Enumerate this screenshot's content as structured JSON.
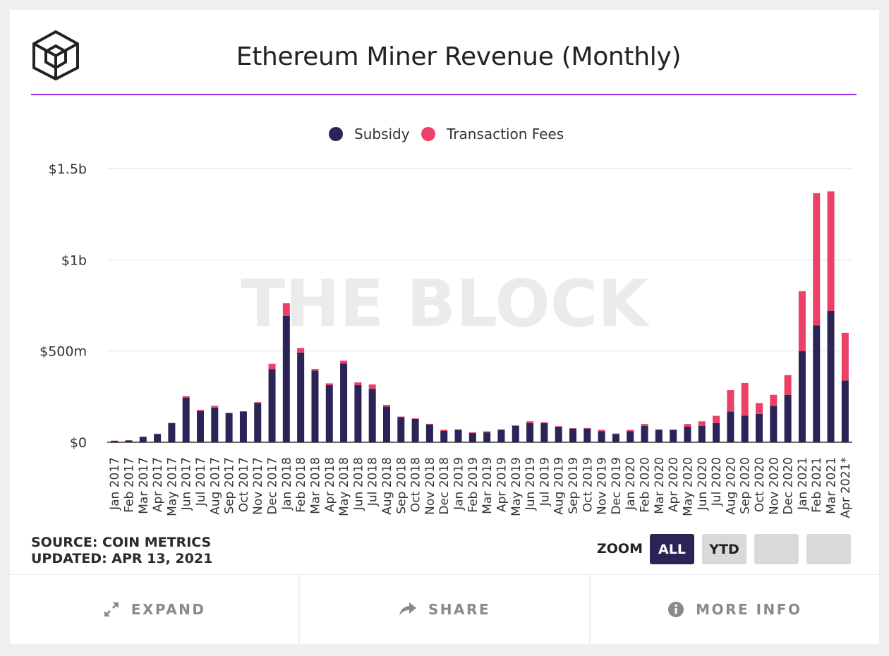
{
  "header": {
    "title": "Ethereum Miner Revenue (Monthly)"
  },
  "watermark": "THE BLOCK",
  "source": {
    "line1": "SOURCE: COIN METRICS",
    "line2": "UPDATED: APR 13, 2021"
  },
  "zoom": {
    "label": "ZOOM",
    "buttons": [
      "ALL",
      "YTD",
      "",
      ""
    ]
  },
  "footer": {
    "expand": "EXPAND",
    "share": "SHARE",
    "more_info": "MORE INFO"
  },
  "colors": {
    "subsidy": "#2a2457",
    "fees": "#ec4068",
    "accent": "#8a2be2"
  },
  "chart_data": {
    "type": "bar",
    "stacked": true,
    "title": "Ethereum Miner Revenue (Monthly)",
    "legend_position": "top-center",
    "grid": true,
    "ylim": [
      0,
      1500000000
    ],
    "yticks": [
      {
        "value": 0,
        "label": "$0"
      },
      {
        "value": 500000000,
        "label": "$500m"
      },
      {
        "value": 1000000000,
        "label": "$1b"
      },
      {
        "value": 1500000000,
        "label": "$1.5b"
      }
    ],
    "categories": [
      "Jan 2017",
      "Feb 2017",
      "Mar 2017",
      "Apr 2017",
      "May 2017",
      "Jun 2017",
      "Jul 2017",
      "Aug 2017",
      "Sep 2017",
      "Oct 2017",
      "Nov 2017",
      "Dec 2017",
      "Jan 2018",
      "Feb 2018",
      "Mar 2018",
      "Apr 2018",
      "May 2018",
      "Jun 2018",
      "Jul 2018",
      "Aug 2018",
      "Sep 2018",
      "Oct 2018",
      "Nov 2018",
      "Dec 2018",
      "Jan 2019",
      "Feb 2019",
      "Mar 2019",
      "Apr 2019",
      "May 2019",
      "Jun 2019",
      "Jul 2019",
      "Aug 2019",
      "Sep 2019",
      "Oct 2019",
      "Nov 2019",
      "Dec 2019",
      "Jan 2020",
      "Feb 2020",
      "Mar 2020",
      "Apr 2020",
      "May 2020",
      "Jun 2020",
      "Jul 2020",
      "Aug 2020",
      "Sep 2020",
      "Oct 2020",
      "Nov 2020",
      "Dec 2020",
      "Jan 2021",
      "Feb 2021",
      "Mar 2021",
      "Apr 2021*"
    ],
    "series": [
      {
        "name": "Subsidy",
        "values": [
          8000000,
          10000000,
          30000000,
          45000000,
          105000000,
          245000000,
          170000000,
          190000000,
          160000000,
          168000000,
          215000000,
          400000000,
          692000000,
          492000000,
          392000000,
          313000000,
          432000000,
          313000000,
          292000000,
          195000000,
          138000000,
          128000000,
          98000000,
          62000000,
          68000000,
          50000000,
          55000000,
          68000000,
          90000000,
          105000000,
          105000000,
          85000000,
          75000000,
          75000000,
          60000000,
          45000000,
          60000000,
          90000000,
          68000000,
          68000000,
          85000000,
          90000000,
          105000000,
          168000000,
          145000000,
          155000000,
          200000000,
          260000000,
          500000000,
          640000000,
          720000000,
          338000000
        ]
      },
      {
        "name": "Transaction Fees",
        "values": [
          1000000,
          1000000,
          1000000,
          2000000,
          2000000,
          8000000,
          8000000,
          10000000,
          2000000,
          2000000,
          5000000,
          30000000,
          70000000,
          25000000,
          10000000,
          10000000,
          15000000,
          15000000,
          25000000,
          10000000,
          3000000,
          3000000,
          3000000,
          7000000,
          3000000,
          5000000,
          5000000,
          3000000,
          3000000,
          10000000,
          5000000,
          3000000,
          2000000,
          3000000,
          8000000,
          3000000,
          8000000,
          10000000,
          3000000,
          2000000,
          15000000,
          25000000,
          40000000,
          118000000,
          180000000,
          60000000,
          60000000,
          108000000,
          328000000,
          725000000,
          655000000,
          262000000
        ]
      }
    ]
  }
}
